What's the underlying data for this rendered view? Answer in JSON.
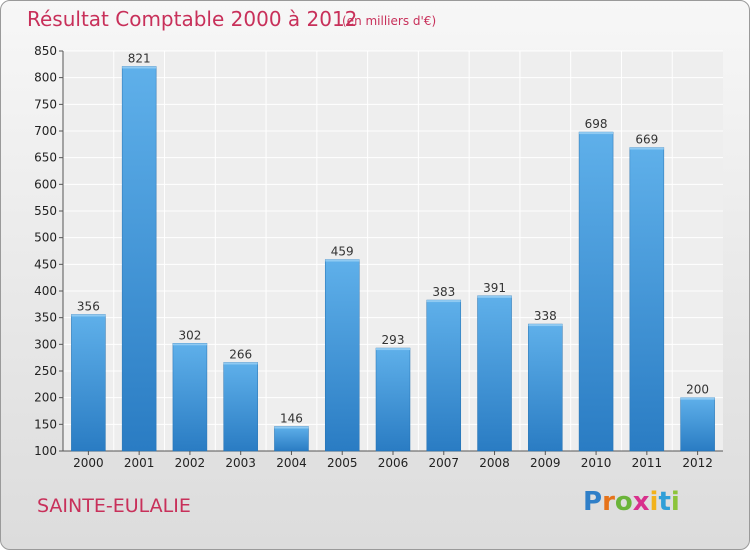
{
  "chart_data": {
    "type": "bar",
    "title": "Résultat Comptable 2000 à 2012",
    "subtitle": "(en milliers d'€)",
    "categories": [
      "2000",
      "2001",
      "2002",
      "2003",
      "2004",
      "2005",
      "2006",
      "2007",
      "2008",
      "2009",
      "2010",
      "2011",
      "2012"
    ],
    "values": [
      356,
      821,
      302,
      266,
      146,
      459,
      293,
      383,
      391,
      338,
      698,
      669,
      200
    ],
    "ylim": [
      100,
      850
    ],
    "yticks": [
      100,
      150,
      200,
      250,
      300,
      350,
      400,
      450,
      500,
      550,
      600,
      650,
      700,
      750,
      800,
      850
    ],
    "grid": true,
    "bar_color": "#3d95dc"
  },
  "footer": {
    "place_name": "SAINTE-EULALIE",
    "logo_letters": [
      {
        "ch": "P",
        "color": "#2f7fc8"
      },
      {
        "ch": "r",
        "color": "#e6731a"
      },
      {
        "ch": "o",
        "color": "#6bb43a"
      },
      {
        "ch": "x",
        "color": "#d8308c"
      },
      {
        "ch": "i",
        "color": "#f2b21a"
      },
      {
        "ch": "t",
        "color": "#2f9fd8"
      },
      {
        "ch": "i",
        "color": "#8cc43a"
      }
    ]
  }
}
